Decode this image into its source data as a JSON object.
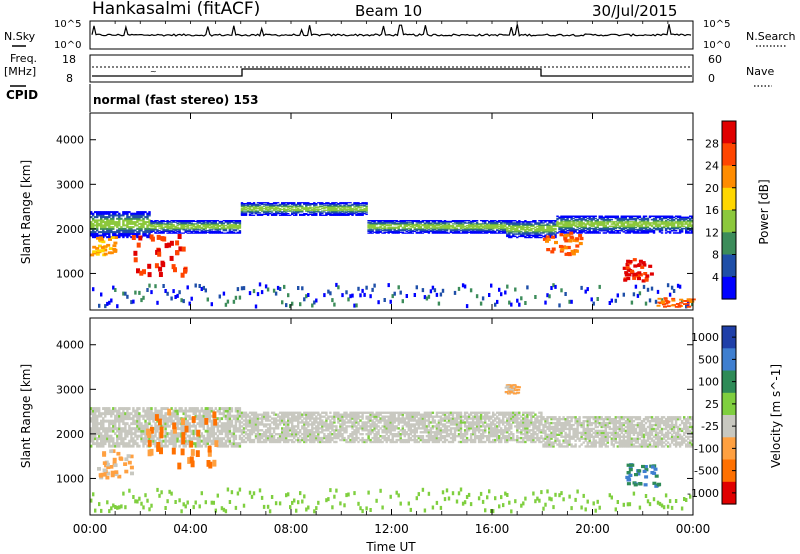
{
  "header": {
    "station": "Hankasalmi (fitACF)",
    "beam": "Beam 10",
    "date": "30/Jul/2015"
  },
  "panels": {
    "nsky_label": "N.Sky",
    "nsky_ticks": [
      "10^5",
      "10^0"
    ],
    "nsearch_label": "N.Search",
    "nsearch_ticks": [
      "10^5",
      "10^0"
    ],
    "freq_label_line1": "Freq.",
    "freq_label_line2": "[MHz]",
    "freq_ticks": [
      "18",
      "8"
    ],
    "nave_label": "Nave",
    "nave_ticks": [
      "60",
      "0"
    ],
    "cpid_label": "CPID",
    "cpid_text": "normal (fast stereo) 153"
  },
  "chart_data": [
    {
      "type": "heatmap",
      "title": "",
      "xlabel": "",
      "ylabel": "Slant Range [km]",
      "x_range": [
        "00:00",
        "24:00"
      ],
      "ylim": [
        180,
        4600
      ],
      "y_ticks": [
        "1000",
        "2000",
        "3000",
        "4000"
      ],
      "colorbar_label": "Power [dB]",
      "colorbar_ticks": [
        "4",
        "8",
        "12",
        "16",
        "20",
        "24",
        "28"
      ],
      "colors": [
        "#0000ff",
        "#1f4fa8",
        "#3c8c5a",
        "#8cc83c",
        "#ffd700",
        "#ff8c00",
        "#ff4500",
        "#e00000"
      ],
      "bands": [
        {
          "t0": 0.0,
          "t1": 2.4,
          "r0": 1800,
          "r1": 2400
        },
        {
          "t0": 2.4,
          "t1": 6.0,
          "r0": 1900,
          "r1": 2200
        },
        {
          "t0": 6.0,
          "t1": 11.0,
          "r0": 2300,
          "r1": 2600
        },
        {
          "t0": 11.0,
          "t1": 16.5,
          "r0": 1900,
          "r1": 2200
        },
        {
          "t0": 16.5,
          "t1": 18.5,
          "r0": 1800,
          "r1": 2200
        },
        {
          "t0": 18.5,
          "t1": 24.0,
          "r0": 1900,
          "r1": 2300
        }
      ],
      "hot_regions": [
        {
          "t0": 1.6,
          "t1": 3.8,
          "r0": 900,
          "r1": 1800,
          "level": 28
        },
        {
          "t0": 0.0,
          "t1": 1.0,
          "r0": 1400,
          "r1": 1800,
          "level": 22
        },
        {
          "t0": 18.0,
          "t1": 19.5,
          "r0": 1400,
          "r1": 1900,
          "level": 26
        },
        {
          "t0": 21.2,
          "t1": 22.4,
          "r0": 800,
          "r1": 1300,
          "level": 28
        },
        {
          "t0": 22.5,
          "t1": 24.0,
          "r0": 250,
          "r1": 450,
          "level": 24
        }
      ]
    },
    {
      "type": "heatmap",
      "title": "",
      "xlabel": "Time UT",
      "ylabel": "Slant Range [km]",
      "x_range": [
        "00:00",
        "24:00"
      ],
      "x_ticks": [
        "00:00",
        "04:00",
        "08:00",
        "12:00",
        "16:00",
        "20:00",
        "00:00"
      ],
      "ylim": [
        180,
        4600
      ],
      "y_ticks": [
        "1000",
        "2000",
        "3000",
        "4000"
      ],
      "colorbar_label": "Velocity [m s^-1]",
      "colorbar_ticks": [
        "1000",
        "500",
        "100",
        "25",
        "-25",
        "-100",
        "-500",
        "-1000"
      ],
      "colors": [
        "#1f3fa8",
        "#3f7fd0",
        "#2e8b57",
        "#7fcf3f",
        "#c8c8c0",
        "#ffa040",
        "#ff7000",
        "#e00000"
      ],
      "bands": [
        {
          "t0": 0.0,
          "t1": 6.0,
          "r0": 1700,
          "r1": 2600
        },
        {
          "t0": 6.0,
          "t1": 18.0,
          "r0": 1800,
          "r1": 2500
        },
        {
          "t0": 18.0,
          "t1": 24.0,
          "r0": 1700,
          "r1": 2400
        }
      ],
      "hot_regions": [
        {
          "t0": 0.2,
          "t1": 1.6,
          "r0": 1000,
          "r1": 1600,
          "level": -100
        },
        {
          "t0": 2.0,
          "t1": 5.0,
          "r0": 1200,
          "r1": 2500,
          "level": -500
        },
        {
          "t0": 21.3,
          "t1": 22.6,
          "r0": 800,
          "r1": 1300,
          "level": 500
        },
        {
          "t0": 16.5,
          "t1": 17.0,
          "r0": 2900,
          "r1": 3100,
          "level": -100
        }
      ]
    }
  ]
}
